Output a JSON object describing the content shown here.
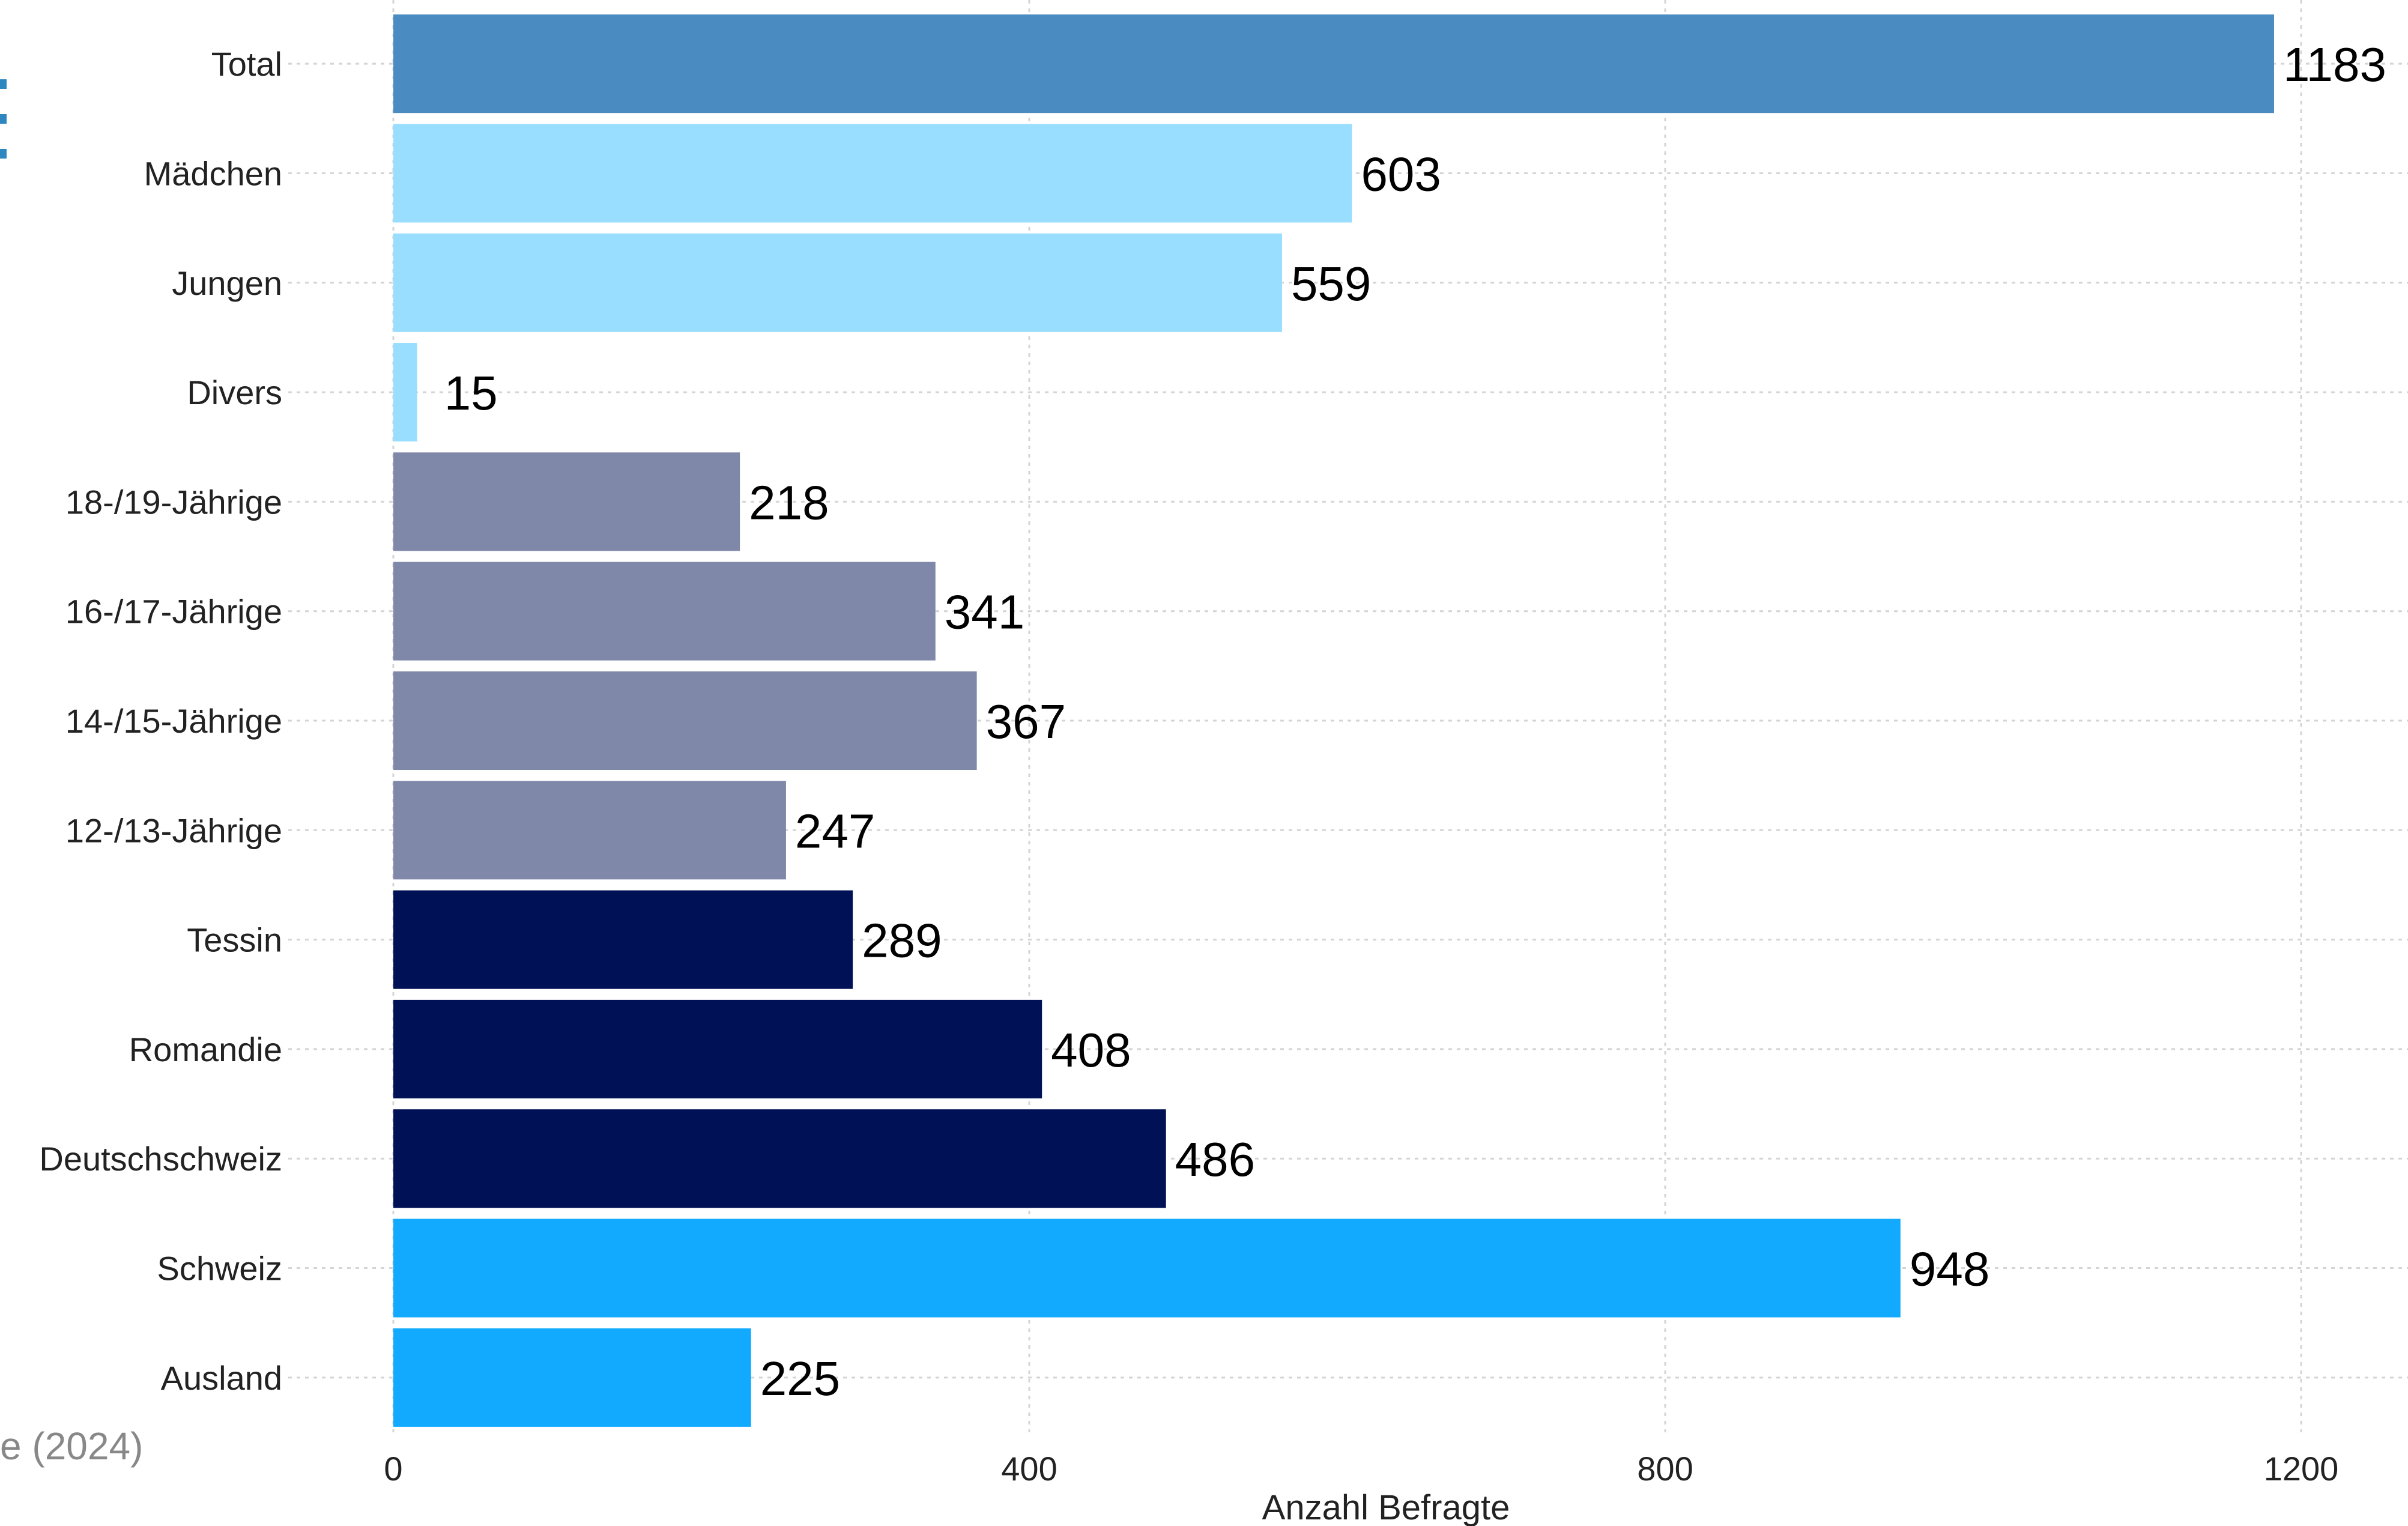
{
  "chart_data": {
    "type": "bar",
    "orientation": "horizontal",
    "categories": [
      "Total",
      "Mädchen",
      "Jungen",
      "Divers",
      "18-/19-Jährige",
      "16-/17-Jährige",
      "14-/15-Jährige",
      "12-/13-Jährige",
      "Tessin",
      "Romandie",
      "Deutschschweiz",
      "Schweiz",
      "Ausland"
    ],
    "values": [
      1183,
      603,
      559,
      15,
      218,
      341,
      367,
      247,
      289,
      408,
      486,
      948,
      225
    ],
    "bar_colors": [
      "#4A8BC2",
      "#99DDFF",
      "#99DDFF",
      "#99DDFF",
      "#8088AA",
      "#8088AA",
      "#8088AA",
      "#8088AA",
      "#001155",
      "#001155",
      "#001155",
      "#11AAFF",
      "#11AAFF"
    ],
    "xlabel": "Anzahl Befragte",
    "ylabel": "",
    "xlim": [
      0,
      1240
    ],
    "xticks": [
      0,
      400,
      800,
      1200
    ],
    "grid": true,
    "legend": "none"
  },
  "source_note": "e (2024)",
  "colors": {
    "edge_mark": "#2E86C1",
    "grid": "#d4d4d4",
    "text": "#222222"
  }
}
